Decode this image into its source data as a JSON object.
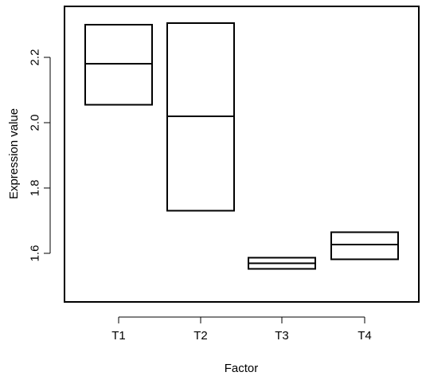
{
  "chart_data": {
    "type": "box",
    "xlabel": "Factor",
    "ylabel": "Expression value",
    "categories": [
      "T1",
      "T2",
      "T3",
      "T4"
    ],
    "boxes": [
      {
        "category": "T1",
        "q1": 2.055,
        "median": 2.18,
        "q3": 2.3
      },
      {
        "category": "T2",
        "q1": 1.73,
        "median": 2.02,
        "q3": 2.305
      },
      {
        "category": "T3",
        "q1": 1.553,
        "median": 1.57,
        "q3": 1.587
      },
      {
        "category": "T4",
        "q1": 1.582,
        "median": 1.627,
        "q3": 1.665
      }
    ],
    "y_ticks": [
      1.6,
      1.8,
      2.0,
      2.2
    ],
    "y_tick_labels": [
      "1.6",
      "1.8",
      "2.0",
      "2.2"
    ],
    "ylim": [
      1.52,
      2.32
    ],
    "grid": false,
    "legend": "none"
  }
}
